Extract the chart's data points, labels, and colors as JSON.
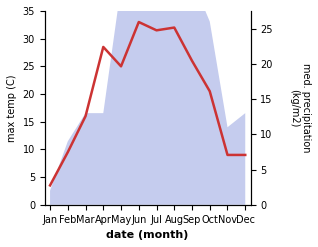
{
  "months": [
    "Jan",
    "Feb",
    "Mar",
    "Apr",
    "May",
    "Jun",
    "Jul",
    "Aug",
    "Sep",
    "Oct",
    "Nov",
    "Dec"
  ],
  "temperature": [
    3.5,
    9.5,
    16.0,
    28.5,
    25.0,
    33.0,
    31.5,
    32.0,
    26.0,
    20.5,
    9.0,
    9.0
  ],
  "precipitation": [
    2.0,
    9.0,
    13.0,
    13.0,
    31.0,
    41.0,
    32.0,
    40.0,
    32.0,
    26.0,
    11.0,
    13.0
  ],
  "temp_color": "#cc3333",
  "precip_fill_color": "#c5ccee",
  "ylabel_left": "max temp (C)",
  "ylabel_right": "med. precipitation\n(kg/m2)",
  "xlabel": "date (month)",
  "ylim_left": [
    0,
    35
  ],
  "ylim_right": [
    0,
    27.5
  ],
  "yticks_left": [
    0,
    5,
    10,
    15,
    20,
    25,
    30,
    35
  ],
  "yticks_right": [
    0,
    5,
    10,
    15,
    20,
    25
  ],
  "precip_scale_factor": 1.2727,
  "background_color": "#ffffff"
}
